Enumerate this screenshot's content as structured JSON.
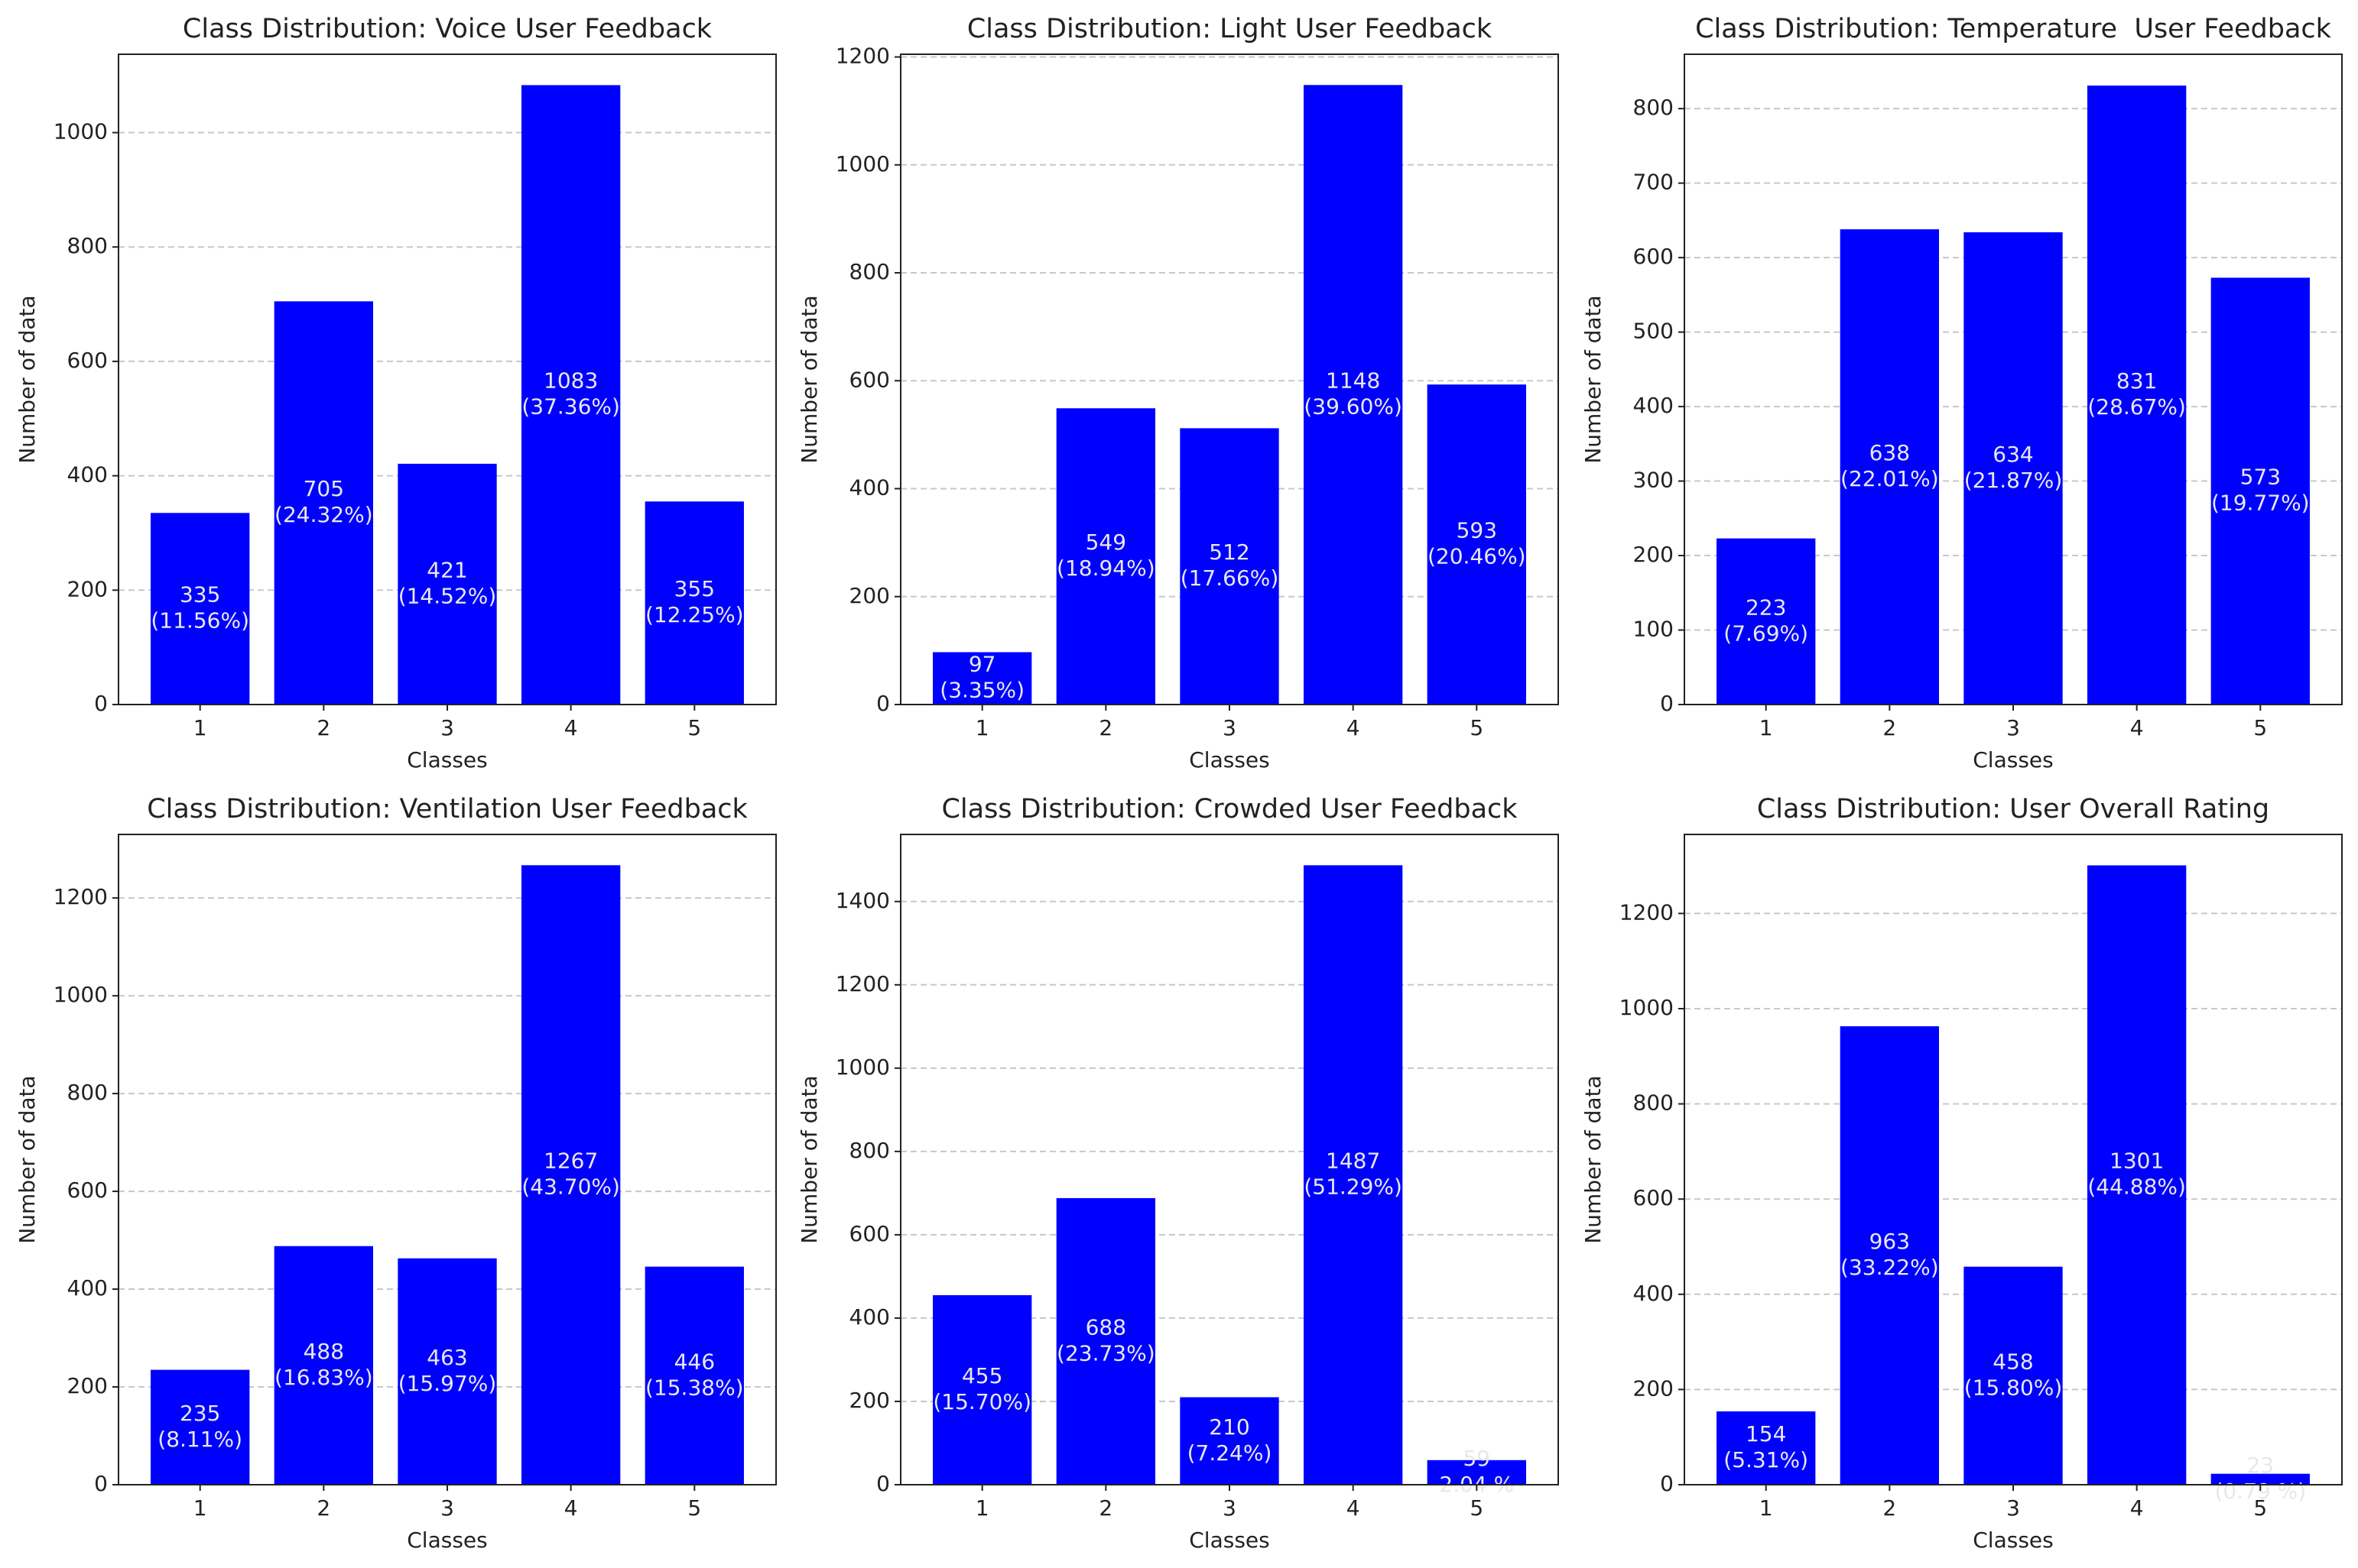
{
  "chart_data": [
    {
      "type": "bar",
      "title": "Class Distribution: Voice User Feedback",
      "xlabel": "Classes",
      "ylabel": "Number of data",
      "categories": [
        "1",
        "2",
        "3",
        "4",
        "5"
      ],
      "values": [
        335,
        705,
        421,
        1083,
        355
      ],
      "percent_labels": [
        "(11.56%)",
        "(24.32%)",
        "(14.52%)",
        "(37.36%)",
        "(12.25%)"
      ],
      "color": "#0000ff",
      "ylim": [
        0,
        1137
      ],
      "yticks": [
        0,
        200,
        400,
        600,
        800,
        1000
      ],
      "grid": true
    },
    {
      "type": "bar",
      "title": "Class Distribution: Light User Feedback",
      "xlabel": "Classes",
      "ylabel": "Number of data",
      "categories": [
        "1",
        "2",
        "3",
        "4",
        "5"
      ],
      "values": [
        97,
        549,
        512,
        1148,
        593
      ],
      "percent_labels": [
        "(3.35%)",
        "(18.94%)",
        "(17.66%)",
        "(39.60%)",
        "(20.46%)"
      ],
      "color": "#0000ff",
      "ylim": [
        0,
        1205
      ],
      "yticks": [
        0,
        200,
        400,
        600,
        800,
        1000,
        1200
      ],
      "grid": true
    },
    {
      "type": "bar",
      "title": "Class Distribution: Temperature  User Feedback",
      "xlabel": "Classes",
      "ylabel": "Number of data",
      "categories": [
        "1",
        "2",
        "3",
        "4",
        "5"
      ],
      "values": [
        223,
        638,
        634,
        831,
        573
      ],
      "percent_labels": [
        "(7.69%)",
        "(22.01%)",
        "(21.87%)",
        "(28.67%)",
        "(19.77%)"
      ],
      "color": "#0000ff",
      "ylim": [
        0,
        873
      ],
      "yticks": [
        0,
        100,
        200,
        300,
        400,
        500,
        600,
        700,
        800
      ],
      "grid": true
    },
    {
      "type": "bar",
      "title": "Class Distribution: Ventilation User Feedback",
      "xlabel": "Classes",
      "ylabel": "Number of data",
      "categories": [
        "1",
        "2",
        "3",
        "4",
        "5"
      ],
      "values": [
        235,
        488,
        463,
        1267,
        446
      ],
      "percent_labels": [
        "(8.11%)",
        "(16.83%)",
        "(15.97%)",
        "(43.70%)",
        "(15.38%)"
      ],
      "color": "#0000ff",
      "ylim": [
        0,
        1330
      ],
      "yticks": [
        0,
        200,
        400,
        600,
        800,
        1000,
        1200
      ],
      "grid": true
    },
    {
      "type": "bar",
      "title": "Class Distribution: Crowded User Feedback",
      "xlabel": "Classes",
      "ylabel": "Number of data",
      "categories": [
        "1",
        "2",
        "3",
        "4",
        "5"
      ],
      "values": [
        455,
        688,
        210,
        1487,
        59
      ],
      "percent_labels": [
        "(15.70%)",
        "(23.73%)",
        "(7.24%)",
        "(51.29%)",
        "2.04 %"
      ],
      "color": "#0000ff",
      "ylim": [
        0,
        1561
      ],
      "yticks": [
        0,
        200,
        400,
        600,
        800,
        1000,
        1200,
        1400
      ],
      "grid": true
    },
    {
      "type": "bar",
      "title": "Class Distribution: User Overall Rating",
      "xlabel": "Classes",
      "ylabel": "Number of data",
      "categories": [
        "1",
        "2",
        "3",
        "4",
        "5"
      ],
      "values": [
        154,
        963,
        458,
        1301,
        23
      ],
      "percent_labels": [
        "(5.31%)",
        "(33.22%)",
        "(15.80%)",
        "(44.88%)",
        "(0.79 %)"
      ],
      "color": "#0000ff",
      "ylim": [
        0,
        1366
      ],
      "yticks": [
        0,
        200,
        400,
        600,
        800,
        1000,
        1200
      ],
      "grid": true
    }
  ]
}
